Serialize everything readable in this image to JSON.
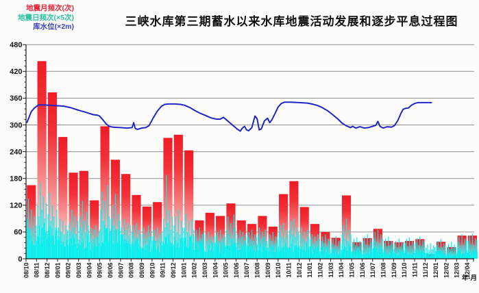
{
  "header": {
    "title": "三峡水库第三期蓄水以来水库地震活动发展和逐步平息过程图"
  },
  "legend": {
    "items": [
      {
        "id": "monthly-frequency",
        "label": "地震月频次(次)",
        "color": "#e6273a"
      },
      {
        "id": "daily-frequency",
        "label": "地震日频次(×5次)",
        "color": "#2bbf9f"
      },
      {
        "id": "water-level",
        "label": "库水位(×2m)",
        "color": "#3a3fc4"
      }
    ]
  },
  "chart_data": {
    "type": "combo",
    "title": "三峡水库第三期蓄水以来水库地震活动发展和逐步平息过程图",
    "x_axis_label": "年-月",
    "ylim": [
      0,
      480
    ],
    "y_major_ticks": [
      0,
      60,
      120,
      180,
      240,
      300,
      360,
      420,
      480
    ],
    "y_minor_step": 12,
    "grid": true,
    "grid_color": "#8f8f8f",
    "categories": [
      "08/10",
      "08/11",
      "08/12",
      "09/01",
      "09/02",
      "09/03",
      "09/04",
      "09/05",
      "09/06",
      "09/07",
      "09/08",
      "09/09",
      "09/10",
      "09/11",
      "09/12",
      "10/01",
      "10/02",
      "10/03",
      "10/04",
      "10/05",
      "10/06",
      "10/07",
      "10/08",
      "10/09",
      "10/10",
      "10/11",
      "10/12",
      "11/01",
      "11/02",
      "11/03",
      "11/04",
      "11/05",
      "11/06",
      "11/07",
      "11/08",
      "11/09",
      "11/10",
      "11/11",
      "11/12",
      "12/01",
      "12/02",
      "12/03",
      "12/04"
    ],
    "series": [
      {
        "name": "地震月频次(次)",
        "type": "bar",
        "color": "#ef1c27",
        "color_fade": "#fde9e8",
        "values": [
          165,
          443,
          373,
          273,
          193,
          197,
          131,
          297,
          222,
          190,
          143,
          117,
          127,
          271,
          278,
          243,
          86,
          103,
          96,
          124,
          86,
          78,
          96,
          72,
          145,
          174,
          116,
          78,
          60,
          47,
          142,
          37,
          46,
          67,
          40,
          37,
          40,
          44,
          10,
          38,
          26,
          52,
          52
        ]
      },
      {
        "name": "地震日频次(×5次)",
        "type": "spike-bars",
        "color": "#00efef",
        "monthly_profile": [
          {
            "base": 45,
            "peaks": [
              90,
              135,
              70,
              110,
              60,
              95,
              75
            ]
          },
          {
            "base": 55,
            "peaks": [
              120,
              95,
              170,
              110,
              140,
              90,
              125
            ]
          },
          {
            "base": 50,
            "peaks": [
              100,
              148,
              85,
              120,
              95,
              70,
              110
            ]
          },
          {
            "base": 40,
            "peaks": [
              70,
              90,
              60,
              85,
              55,
              75,
              65
            ]
          },
          {
            "base": 38,
            "peaks": [
              80,
              60,
              110,
              70,
              95,
              55,
              85
            ]
          },
          {
            "base": 40,
            "peaks": [
              95,
              70,
              130,
              85,
              60,
              105,
              75
            ]
          },
          {
            "base": 30,
            "peaks": [
              55,
              70,
              45,
              65,
              75,
              50,
              60
            ]
          },
          {
            "base": 48,
            "peaks": [
              110,
              150,
              85,
              130,
              70,
              165,
              95
            ]
          },
          {
            "base": 45,
            "peaks": [
              90,
              120,
              75,
              145,
              65,
              100,
              85
            ]
          },
          {
            "base": 35,
            "peaks": [
              70,
              55,
              90,
              65,
              80,
              50,
              75
            ]
          },
          {
            "base": 30,
            "peaks": [
              60,
              75,
              50,
              80,
              45,
              65,
              55
            ]
          },
          {
            "base": 28,
            "peaks": [
              55,
              70,
              45,
              60,
              75,
              50,
              65
            ]
          },
          {
            "base": 26,
            "peaks": [
              50,
              65,
              40,
              70,
              45,
              55,
              60
            ]
          },
          {
            "base": 40,
            "peaks": [
              90,
              70,
              188,
              80,
              110,
              65,
              95
            ]
          },
          {
            "base": 35,
            "peaks": [
              75,
              95,
              60,
              110,
              55,
              85,
              70
            ]
          },
          {
            "base": 35,
            "peaks": [
              70,
              100,
              60,
              85,
              50,
              90,
              65
            ]
          },
          {
            "base": 25,
            "peaks": [
              50,
              65,
              40,
              70,
              45,
              55,
              60
            ]
          },
          {
            "base": 24,
            "peaks": [
              55,
              40,
              60,
              45,
              50,
              35,
              55
            ]
          },
          {
            "base": 24,
            "peaks": [
              50,
              60,
              40,
              65,
              45,
              55,
              50
            ]
          },
          {
            "base": 30,
            "peaks": [
              65,
              95,
              55,
              80,
              45,
              100,
              70
            ]
          },
          {
            "base": 25,
            "peaks": [
              55,
              45,
              65,
              50,
              60,
              40,
              55
            ]
          },
          {
            "base": 24,
            "peaks": [
              50,
              60,
              45,
              65,
              40,
              55,
              50
            ]
          },
          {
            "base": 25,
            "peaks": [
              55,
              70,
              45,
              60,
              50,
              65,
              40
            ]
          },
          {
            "base": 22,
            "peaks": [
              45,
              55,
              40,
              60,
              35,
              50,
              45
            ]
          },
          {
            "base": 26,
            "peaks": [
              60,
              75,
              50,
              80,
              45,
              65,
              55
            ]
          },
          {
            "base": 28,
            "peaks": [
              65,
              85,
              55,
              90,
              50,
              70,
              60
            ]
          },
          {
            "base": 24,
            "peaks": [
              55,
              70,
              45,
              60,
              40,
              65,
              50
            ]
          },
          {
            "base": 20,
            "peaks": [
              45,
              55,
              35,
              50,
              40,
              55,
              45
            ]
          },
          {
            "base": 18,
            "peaks": [
              40,
              50,
              35,
              55,
              30,
              45,
              40
            ]
          },
          {
            "base": 16,
            "peaks": [
              35,
              45,
              30,
              50,
              28,
              40,
              35
            ]
          },
          {
            "base": 25,
            "peaks": [
              55,
              75,
              45,
              90,
              40,
              65,
              55
            ]
          },
          {
            "base": 16,
            "peaks": [
              35,
              45,
              30,
              48,
              28,
              40,
              34
            ]
          },
          {
            "base": 17,
            "peaks": [
              40,
              50,
              32,
              55,
              30,
              45,
              38
            ]
          },
          {
            "base": 20,
            "peaks": [
              45,
              60,
              38,
              65,
              35,
              55,
              45
            ]
          },
          {
            "base": 15,
            "peaks": [
              35,
              45,
              28,
              50,
              30,
              40,
              35
            ]
          },
          {
            "base": 14,
            "peaks": [
              32,
              40,
              26,
              45,
              28,
              38,
              32
            ]
          },
          {
            "base": 15,
            "peaks": [
              35,
              45,
              28,
              48,
              30,
              40,
              34
            ]
          },
          {
            "base": 15,
            "peaks": [
              36,
              46,
              30,
              50,
              28,
              42,
              36
            ]
          },
          {
            "base": 10,
            "peaks": [
              25,
              32,
              20,
              35,
              22,
              30,
              26
            ]
          },
          {
            "base": 13,
            "peaks": [
              30,
              40,
              25,
              44,
              26,
              35,
              30
            ]
          },
          {
            "base": 11,
            "peaks": [
              26,
              34,
              22,
              38,
              24,
              32,
              26
            ]
          },
          {
            "base": 15,
            "peaks": [
              38,
              50,
              30,
              55,
              32,
              45,
              40
            ]
          },
          {
            "base": 15,
            "peaks": [
              40,
              52,
              32,
              56,
              30,
              46,
              42
            ]
          }
        ]
      },
      {
        "name": "库水位(×2m)",
        "type": "line",
        "color": "#2125c8",
        "points_month_value": [
          [
            0.1,
            306
          ],
          [
            0.5,
            330
          ],
          [
            0.8,
            338
          ],
          [
            1.2,
            345
          ],
          [
            1.7,
            345
          ],
          [
            2.2,
            344
          ],
          [
            3.0,
            343
          ],
          [
            3.6,
            342
          ],
          [
            4.2,
            339
          ],
          [
            5.0,
            333
          ],
          [
            5.6,
            329
          ],
          [
            6.0,
            326
          ],
          [
            6.4,
            323
          ],
          [
            6.8,
            322
          ],
          [
            7.0,
            320
          ],
          [
            7.3,
            312
          ],
          [
            7.6,
            303
          ],
          [
            7.9,
            297
          ],
          [
            8.3,
            295
          ],
          [
            9.0,
            294
          ],
          [
            9.6,
            293
          ],
          [
            10.1,
            294
          ],
          [
            10.25,
            305
          ],
          [
            10.4,
            292
          ],
          [
            10.6,
            290
          ],
          [
            11.0,
            293
          ],
          [
            11.4,
            294
          ],
          [
            11.7,
            298
          ],
          [
            12.1,
            315
          ],
          [
            12.5,
            331
          ],
          [
            12.9,
            342
          ],
          [
            13.2,
            346
          ],
          [
            13.6,
            347
          ],
          [
            14.2,
            347
          ],
          [
            14.7,
            346
          ],
          [
            15.1,
            344
          ],
          [
            15.6,
            339
          ],
          [
            16.1,
            332
          ],
          [
            16.6,
            326
          ],
          [
            17.1,
            321
          ],
          [
            17.6,
            316
          ],
          [
            18.1,
            313
          ],
          [
            18.5,
            313
          ],
          [
            18.8,
            317
          ],
          [
            19.1,
            311
          ],
          [
            19.5,
            303
          ],
          [
            19.8,
            297
          ],
          [
            20.1,
            291
          ],
          [
            20.4,
            286
          ],
          [
            20.6,
            293
          ],
          [
            20.8,
            297
          ],
          [
            21.0,
            289
          ],
          [
            21.2,
            287
          ],
          [
            21.5,
            294
          ],
          [
            21.8,
            320
          ],
          [
            22.0,
            314
          ],
          [
            22.2,
            289
          ],
          [
            22.4,
            291
          ],
          [
            22.7,
            309
          ],
          [
            23.0,
            315
          ],
          [
            23.2,
            305
          ],
          [
            23.4,
            311
          ],
          [
            23.7,
            325
          ],
          [
            24.0,
            340
          ],
          [
            24.3,
            348
          ],
          [
            24.6,
            351
          ],
          [
            25.2,
            351
          ],
          [
            26.0,
            350
          ],
          [
            26.8,
            349
          ],
          [
            27.2,
            347
          ],
          [
            27.7,
            344
          ],
          [
            28.2,
            339
          ],
          [
            28.7,
            332
          ],
          [
            29.2,
            323
          ],
          [
            29.7,
            313
          ],
          [
            30.1,
            304
          ],
          [
            30.5,
            298
          ],
          [
            30.9,
            294
          ],
          [
            31.1,
            297
          ],
          [
            31.4,
            293
          ],
          [
            31.8,
            296
          ],
          [
            32.2,
            293
          ],
          [
            32.6,
            294
          ],
          [
            33.0,
            297
          ],
          [
            33.3,
            299
          ],
          [
            33.5,
            308
          ],
          [
            33.7,
            297
          ],
          [
            34.0,
            293
          ],
          [
            34.4,
            296
          ],
          [
            34.8,
            295
          ],
          [
            35.1,
            299
          ],
          [
            35.4,
            310
          ],
          [
            35.7,
            326
          ],
          [
            35.9,
            335
          ],
          [
            36.1,
            337
          ],
          [
            36.4,
            338
          ],
          [
            36.7,
            344
          ],
          [
            37.0,
            348
          ],
          [
            37.3,
            350
          ],
          [
            38.0,
            350
          ],
          [
            38.6,
            350
          ]
        ]
      }
    ]
  }
}
